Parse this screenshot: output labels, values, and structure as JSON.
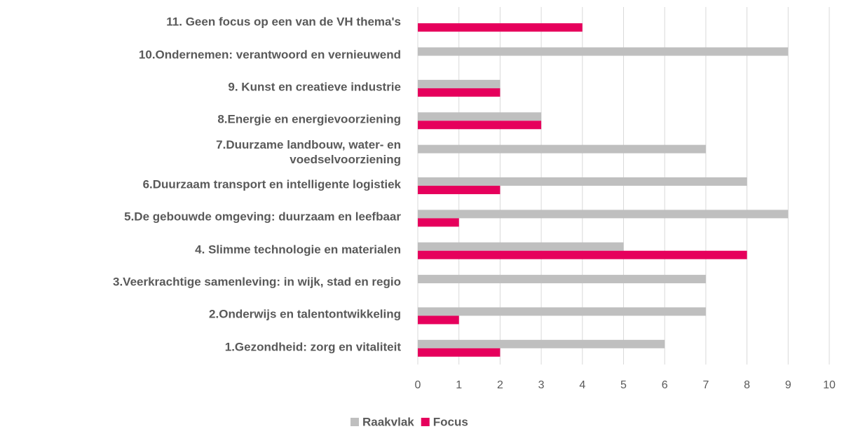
{
  "chart_data": {
    "type": "bar",
    "orientation": "horizontal",
    "categories": [
      "11. Geen focus op een van de VH thema's",
      "10.Ondernemen: verantwoord en vernieuwend",
      "9. Kunst en creatieve industrie",
      "8.Energie en energievoorziening",
      "7.Duurzame landbouw, water- en\nvoedselvoorziening",
      "6.Duurzaam transport en intelligente logistiek",
      "5.De gebouwde omgeving: duurzaam en leefbaar",
      "4. Slimme technologie en materialen",
      "3.Veerkrachtige samenleving: in wijk, stad en regio",
      "2.Onderwijs en talentontwikkeling",
      "1.Gezondheid: zorg en vitaliteit"
    ],
    "series": [
      {
        "name": "Raakvlak",
        "color": "#bfbfbf",
        "values": [
          0,
          9,
          2,
          3,
          7,
          8,
          9,
          5,
          7,
          7,
          6
        ]
      },
      {
        "name": "Focus",
        "color": "#e6005c",
        "values": [
          4,
          0,
          2,
          3,
          0,
          2,
          1,
          8,
          0,
          1,
          2
        ]
      }
    ],
    "xlim": [
      0,
      10
    ],
    "xticks": [
      0,
      1,
      2,
      3,
      4,
      5,
      6,
      7,
      8,
      9,
      10
    ],
    "grid": true,
    "legend": "bottom"
  }
}
